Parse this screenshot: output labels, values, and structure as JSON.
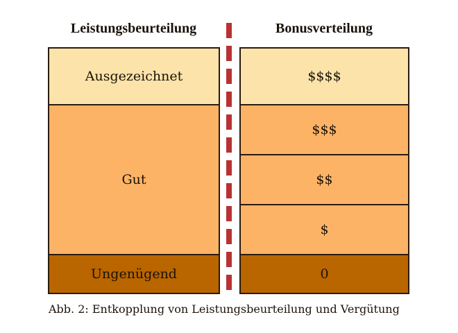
{
  "left": {
    "title": "Leistungsbeurteilung",
    "rows": [
      "Ausgezeichnet",
      "Gut",
      "Ungenügend"
    ]
  },
  "right": {
    "title": "Bonusverteilung",
    "rows": [
      "$$$$",
      "$$$",
      "$$",
      "$",
      "0"
    ]
  },
  "caption": "Abb. 2: Entkopplung von Leistungsbeurteilung und Vergütung",
  "colors": {
    "light": "#fbe3aa",
    "mid": "#fdb366",
    "dark": "#b96500",
    "divider": "#b83232"
  }
}
